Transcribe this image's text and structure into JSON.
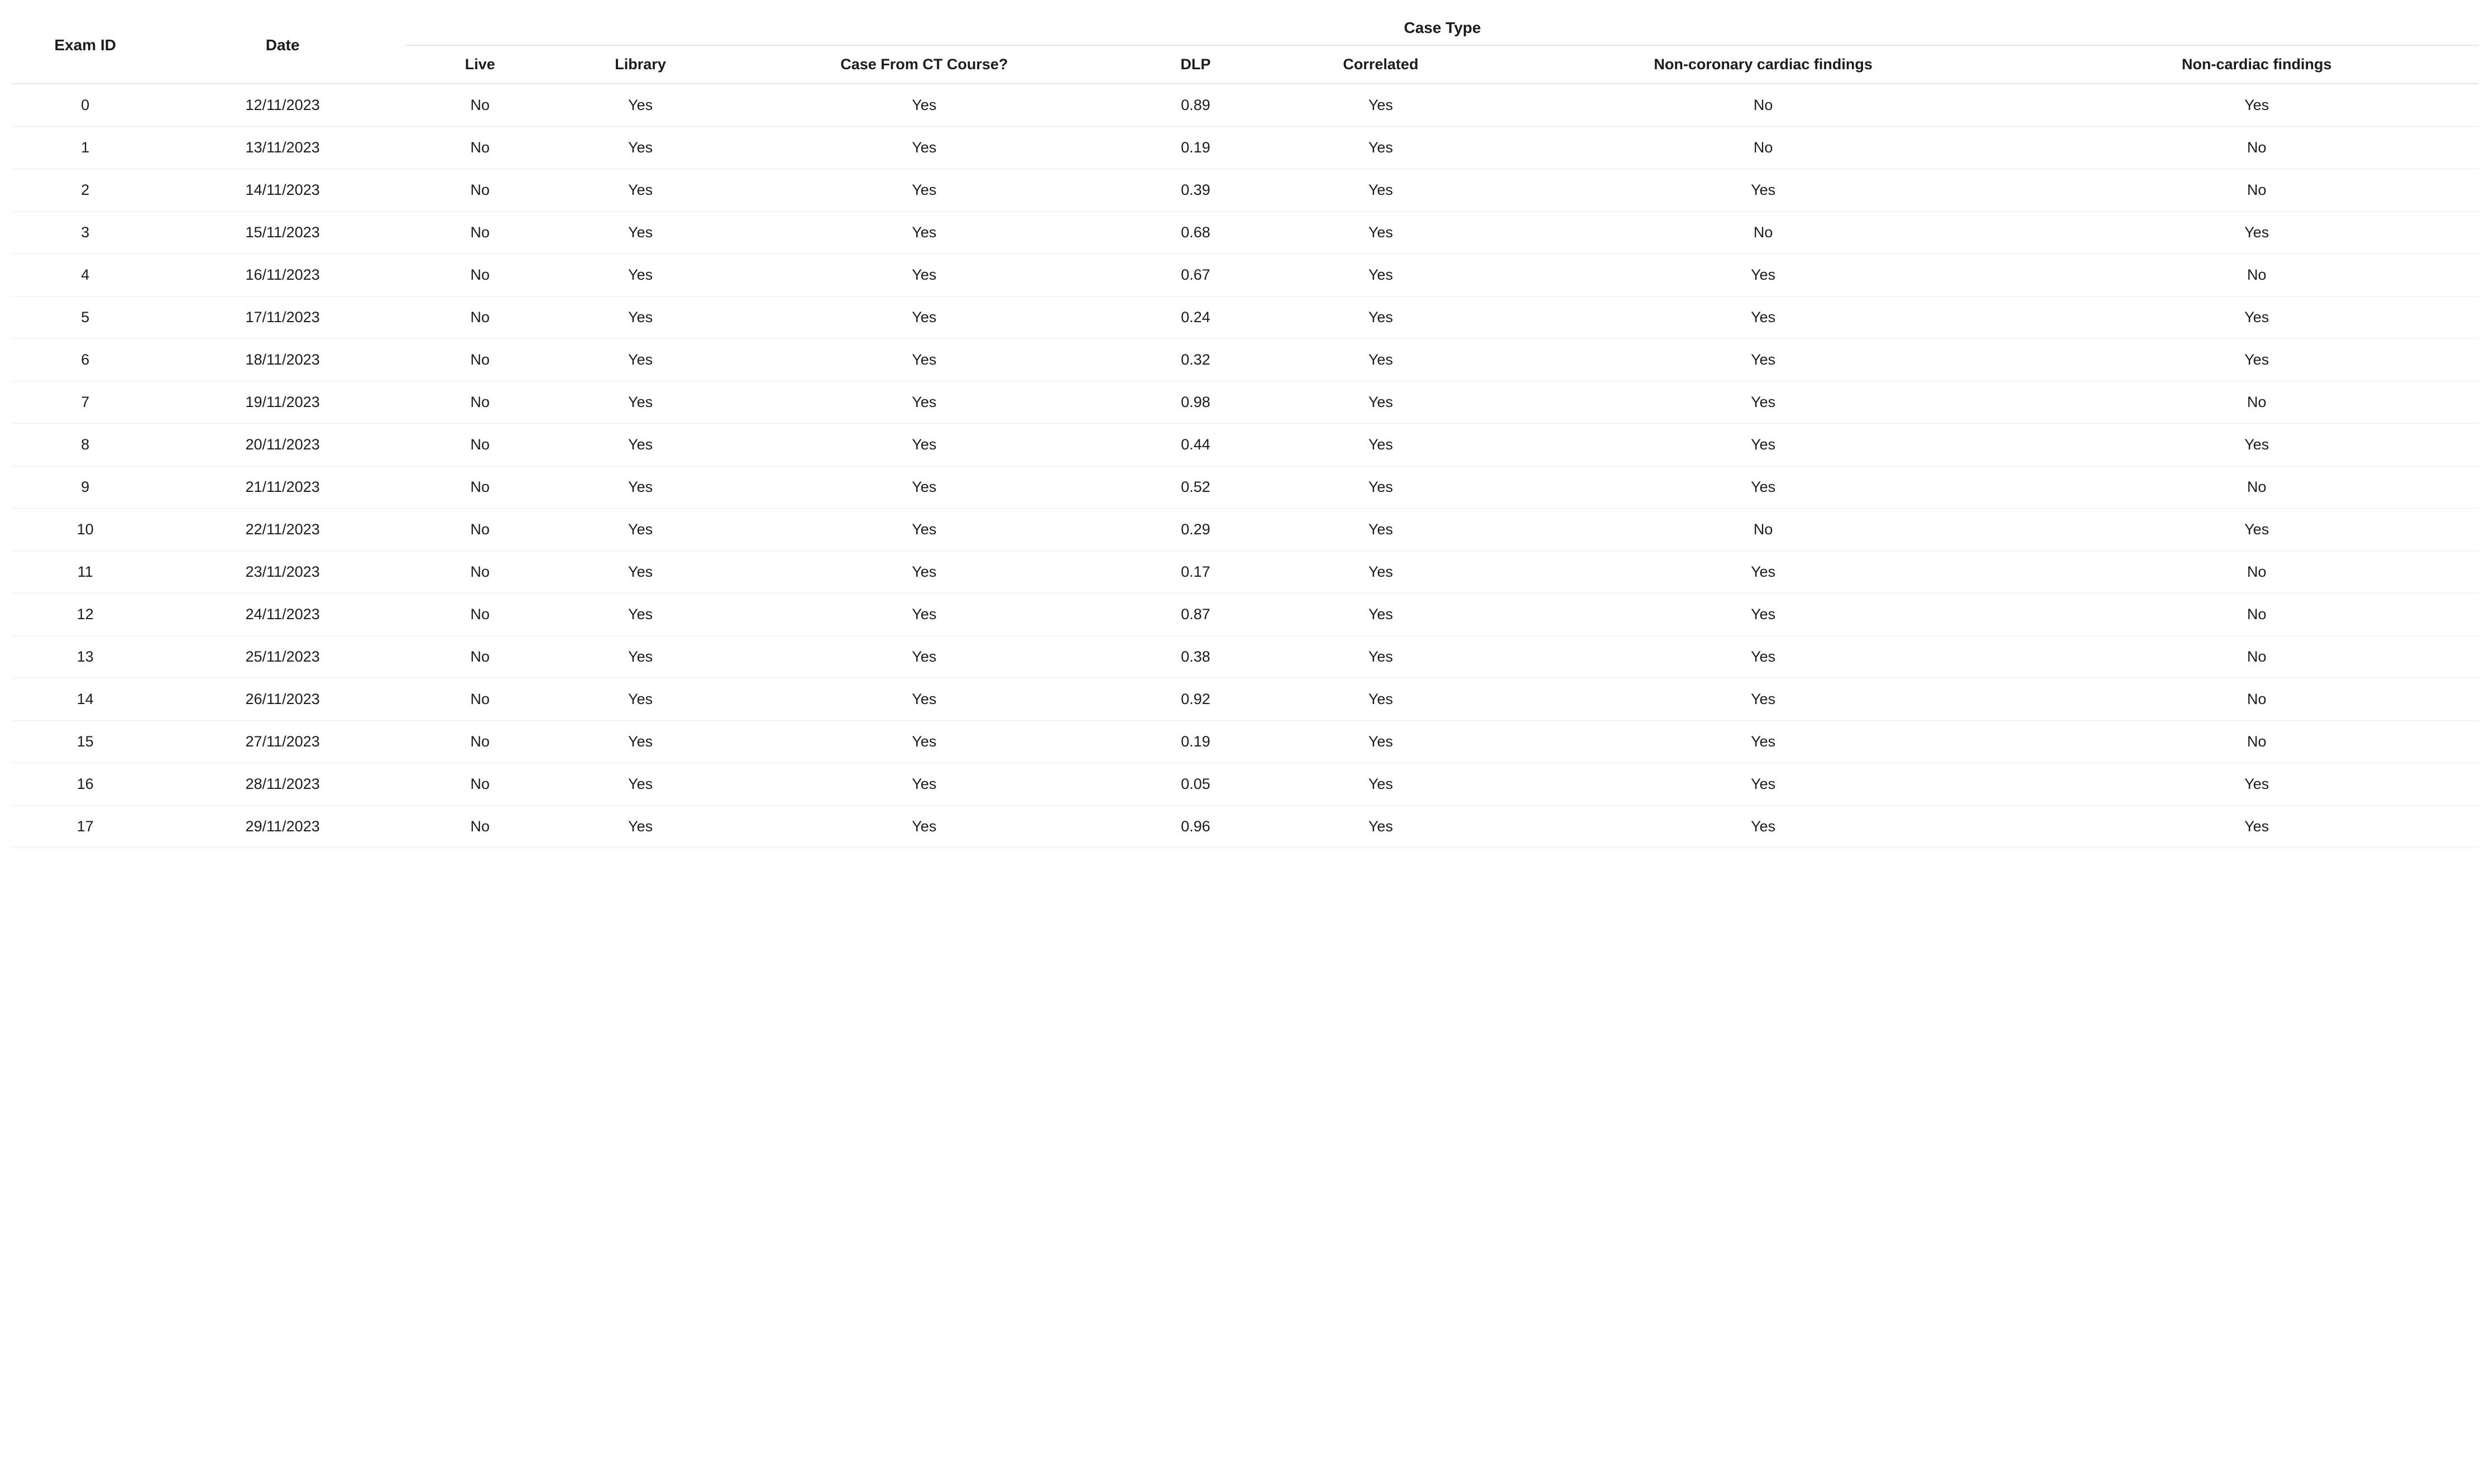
{
  "table": {
    "type": "table",
    "background_color": "#ffffff",
    "border_color": "#e6e6e8",
    "row_divider_color": "#ececee",
    "text_color": "#1c1c1e",
    "header_fontsize_pt": 21,
    "subheader_fontsize_pt": 20,
    "cell_fontsize_pt": 20,
    "header_fontweight": 700,
    "cell_fontweight": 400,
    "header": {
      "group_label": "Case Type",
      "columns": {
        "exam_id": "Exam ID",
        "date": "Date",
        "live": "Live",
        "library": "Library",
        "ct_course": "Case From CT Course?",
        "dlp": "DLP",
        "correlated": "Correlated",
        "non_coronary": "Non-coronary cardiac findings",
        "non_cardiac": "Non-cardiac findings"
      }
    },
    "column_alignment": {
      "exam_id": "center",
      "date": "center",
      "live": "center",
      "library": "center",
      "ct_course": "center",
      "dlp": "center",
      "correlated": "center",
      "non_coronary": "center",
      "non_cardiac": "center"
    },
    "rows": [
      {
        "exam_id": "0",
        "date": "12/11/2023",
        "live": "No",
        "library": "Yes",
        "ct_course": "Yes",
        "dlp": "0.89",
        "correlated": "Yes",
        "non_coronary": "No",
        "non_cardiac": "Yes"
      },
      {
        "exam_id": "1",
        "date": "13/11/2023",
        "live": "No",
        "library": "Yes",
        "ct_course": "Yes",
        "dlp": "0.19",
        "correlated": "Yes",
        "non_coronary": "No",
        "non_cardiac": "No"
      },
      {
        "exam_id": "2",
        "date": "14/11/2023",
        "live": "No",
        "library": "Yes",
        "ct_course": "Yes",
        "dlp": "0.39",
        "correlated": "Yes",
        "non_coronary": "Yes",
        "non_cardiac": "No"
      },
      {
        "exam_id": "3",
        "date": "15/11/2023",
        "live": "No",
        "library": "Yes",
        "ct_course": "Yes",
        "dlp": "0.68",
        "correlated": "Yes",
        "non_coronary": "No",
        "non_cardiac": "Yes"
      },
      {
        "exam_id": "4",
        "date": "16/11/2023",
        "live": "No",
        "library": "Yes",
        "ct_course": "Yes",
        "dlp": "0.67",
        "correlated": "Yes",
        "non_coronary": "Yes",
        "non_cardiac": "No"
      },
      {
        "exam_id": "5",
        "date": "17/11/2023",
        "live": "No",
        "library": "Yes",
        "ct_course": "Yes",
        "dlp": "0.24",
        "correlated": "Yes",
        "non_coronary": "Yes",
        "non_cardiac": "Yes"
      },
      {
        "exam_id": "6",
        "date": "18/11/2023",
        "live": "No",
        "library": "Yes",
        "ct_course": "Yes",
        "dlp": "0.32",
        "correlated": "Yes",
        "non_coronary": "Yes",
        "non_cardiac": "Yes"
      },
      {
        "exam_id": "7",
        "date": "19/11/2023",
        "live": "No",
        "library": "Yes",
        "ct_course": "Yes",
        "dlp": "0.98",
        "correlated": "Yes",
        "non_coronary": "Yes",
        "non_cardiac": "No"
      },
      {
        "exam_id": "8",
        "date": "20/11/2023",
        "live": "No",
        "library": "Yes",
        "ct_course": "Yes",
        "dlp": "0.44",
        "correlated": "Yes",
        "non_coronary": "Yes",
        "non_cardiac": "Yes"
      },
      {
        "exam_id": "9",
        "date": "21/11/2023",
        "live": "No",
        "library": "Yes",
        "ct_course": "Yes",
        "dlp": "0.52",
        "correlated": "Yes",
        "non_coronary": "Yes",
        "non_cardiac": "No"
      },
      {
        "exam_id": "10",
        "date": "22/11/2023",
        "live": "No",
        "library": "Yes",
        "ct_course": "Yes",
        "dlp": "0.29",
        "correlated": "Yes",
        "non_coronary": "No",
        "non_cardiac": "Yes"
      },
      {
        "exam_id": "11",
        "date": "23/11/2023",
        "live": "No",
        "library": "Yes",
        "ct_course": "Yes",
        "dlp": "0.17",
        "correlated": "Yes",
        "non_coronary": "Yes",
        "non_cardiac": "No"
      },
      {
        "exam_id": "12",
        "date": "24/11/2023",
        "live": "No",
        "library": "Yes",
        "ct_course": "Yes",
        "dlp": "0.87",
        "correlated": "Yes",
        "non_coronary": "Yes",
        "non_cardiac": "No"
      },
      {
        "exam_id": "13",
        "date": "25/11/2023",
        "live": "No",
        "library": "Yes",
        "ct_course": "Yes",
        "dlp": "0.38",
        "correlated": "Yes",
        "non_coronary": "Yes",
        "non_cardiac": "No"
      },
      {
        "exam_id": "14",
        "date": "26/11/2023",
        "live": "No",
        "library": "Yes",
        "ct_course": "Yes",
        "dlp": "0.92",
        "correlated": "Yes",
        "non_coronary": "Yes",
        "non_cardiac": "No"
      },
      {
        "exam_id": "15",
        "date": "27/11/2023",
        "live": "No",
        "library": "Yes",
        "ct_course": "Yes",
        "dlp": "0.19",
        "correlated": "Yes",
        "non_coronary": "Yes",
        "non_cardiac": "No"
      },
      {
        "exam_id": "16",
        "date": "28/11/2023",
        "live": "No",
        "library": "Yes",
        "ct_course": "Yes",
        "dlp": "0.05",
        "correlated": "Yes",
        "non_coronary": "Yes",
        "non_cardiac": "Yes"
      },
      {
        "exam_id": "17",
        "date": "29/11/2023",
        "live": "No",
        "library": "Yes",
        "ct_course": "Yes",
        "dlp": "0.96",
        "correlated": "Yes",
        "non_coronary": "Yes",
        "non_cardiac": "Yes"
      }
    ]
  }
}
